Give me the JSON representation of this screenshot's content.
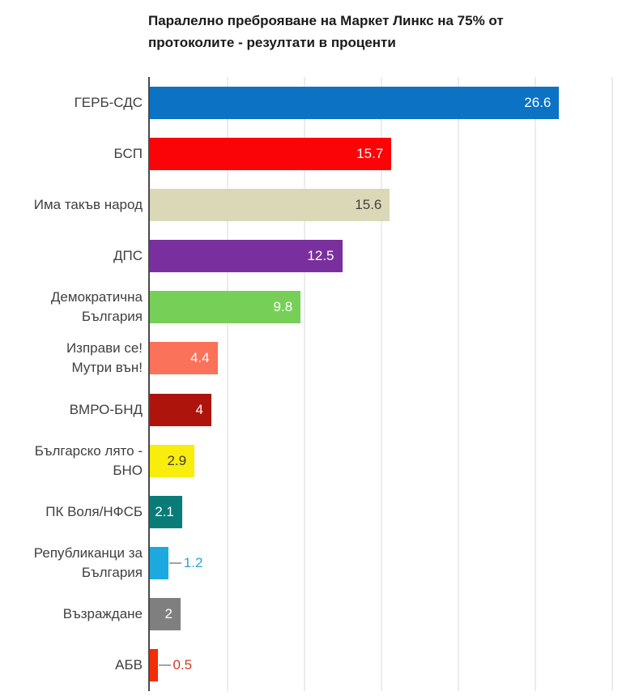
{
  "title": "Паралелно преброяване на Маркет Линкс на 75% от протоколите - резултати в проценти",
  "chart_data": {
    "type": "bar",
    "orientation": "horizontal",
    "title": "Паралелно преброяване на Маркет Линкс на 75% от протоколите - резултати в проценти",
    "categories": [
      "ГЕРБ-СДС",
      "БСП",
      "Има такъв народ",
      "ДПС",
      "Демократична България",
      "Изправи се! Мутри вън!",
      "ВМРО-БНД",
      "Българско лято - БНО",
      "ПК Воля/НФСБ",
      "Републиканци за България",
      "Възраждане",
      "АБВ"
    ],
    "category_lines": [
      [
        "ГЕРБ-СДС"
      ],
      [
        "БСП"
      ],
      [
        "Има такъв народ"
      ],
      [
        "ДПС"
      ],
      [
        "Демократична",
        "България"
      ],
      [
        "Изправи се!",
        "Мутри вън!"
      ],
      [
        "ВМРО-БНД"
      ],
      [
        "Българско лято -",
        "БНО"
      ],
      [
        "ПК Воля/НФСБ"
      ],
      [
        "Републиканци за",
        "България"
      ],
      [
        "Възраждане"
      ],
      [
        "АБВ"
      ]
    ],
    "values": [
      26.6,
      15.7,
      15.6,
      12.5,
      9.8,
      4.4,
      4,
      2.9,
      2.1,
      1.2,
      2,
      0.5
    ],
    "value_labels": [
      "26.6",
      "15.7",
      "15.6",
      "12.5",
      "9.8",
      "4.4",
      "4",
      "2.9",
      "2.1",
      "1.2",
      "2",
      "0.5"
    ],
    "bar_colors": [
      "#0b72c4",
      "#fa0408",
      "#dbd8b8",
      "#7a2f9e",
      "#76d058",
      "#f97259",
      "#ad140b",
      "#f8ed0d",
      "#0a7c77",
      "#1ca9e0",
      "#7f7f7f",
      "#f42d05"
    ],
    "value_label_colors": [
      "#ffffff",
      "#ffffff",
      "#404040",
      "#ffffff",
      "#ffffff",
      "#ffffff",
      "#ffffff",
      "#404040",
      "#ffffff",
      "#2ba3d6",
      "#ffffff",
      "#d03a25"
    ],
    "value_label_placement": [
      "inside",
      "inside",
      "inside",
      "inside",
      "inside",
      "inside",
      "inside",
      "inside",
      "inside",
      "outside",
      "inside",
      "outside"
    ],
    "xlabel": "",
    "ylabel": "",
    "xlim": [
      0,
      30.7
    ],
    "gridlines_x": [
      5,
      10,
      15,
      20,
      25,
      30
    ],
    "legend": "none",
    "grid": "vertical",
    "grid_color": "#ececec",
    "axis_color": "#4a4a4a",
    "background": "#ffffff"
  }
}
